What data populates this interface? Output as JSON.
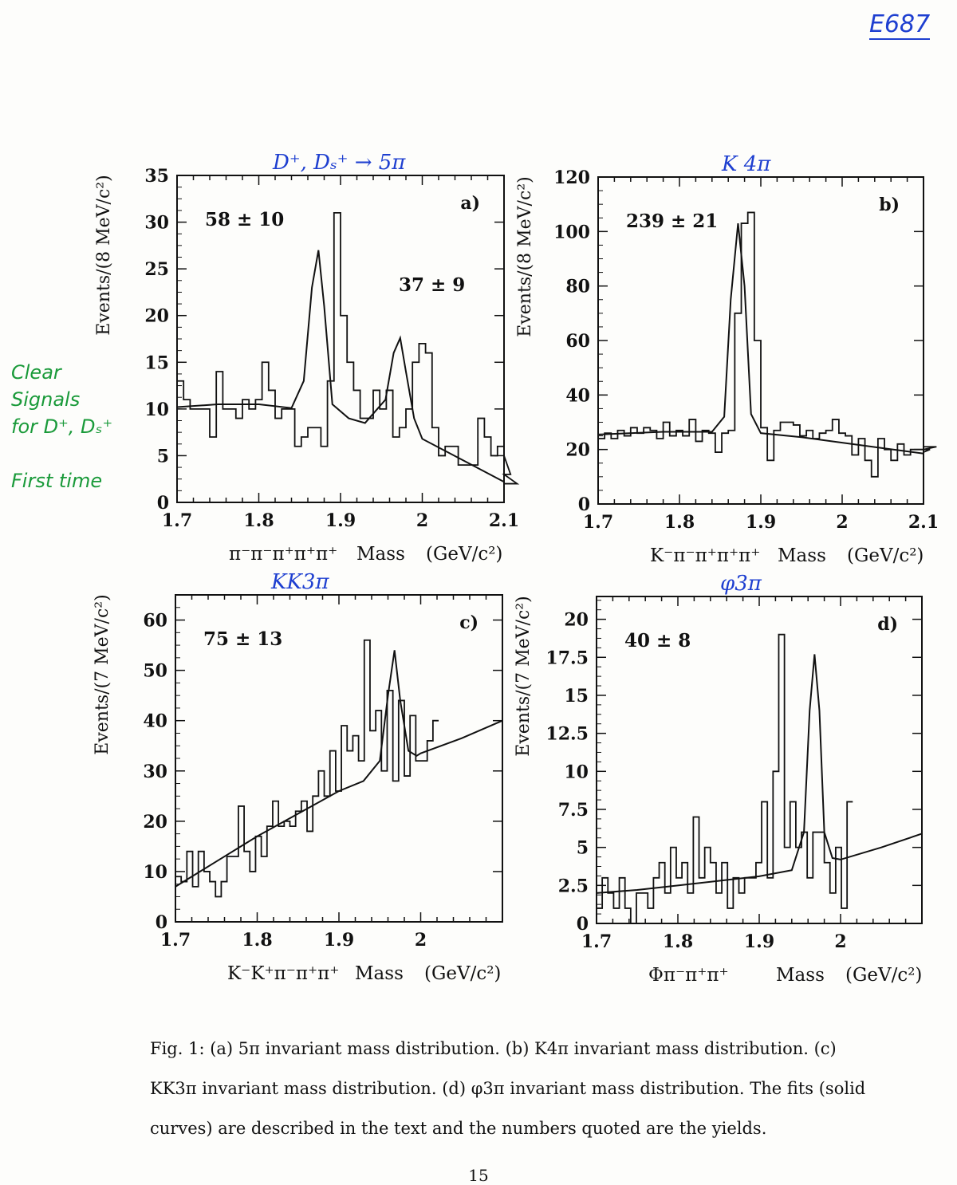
{
  "annotations": {
    "note_id": "E687",
    "side_note": "Clear\nSignals\nfor D⁺, Dₛ⁺\n\nFirst time",
    "page_number": "15"
  },
  "caption": "Fig. 1: (a) 5π invariant mass distribution. (b) K4π invariant mass distribution. (c) KK3π invariant mass distribution. (d) φ3π invariant mass distribution. The fits (solid curves) are described in the text and the numbers quoted are the yields.",
  "colors": {
    "ink": "#111111",
    "handwriting_blue": "#1e3fd0",
    "handwriting_green": "#1a9a3a"
  },
  "chart_data": [
    {
      "type": "line",
      "panel_label": "a)",
      "handwritten_title": "D⁺, Dₛ⁺ → 5π",
      "yield_label": "58 ± 10",
      "yield_label_2": "37 ± 9",
      "ylabel": "Events/(8 MeV/c²)",
      "xlabel_parts": [
        "π⁻π⁻π⁺π⁺π⁺",
        "Mass",
        "(GeV/c²)"
      ],
      "xlim": [
        1.7,
        2.1
      ],
      "ylim": [
        0,
        35
      ],
      "x_ticks": [
        1.7,
        1.8,
        1.9,
        2.0,
        2.1
      ],
      "x_tick_labels": [
        "1.7",
        "1.8",
        "1.9",
        "2",
        "2.1"
      ],
      "y_ticks": [
        0,
        5,
        10,
        15,
        20,
        25,
        30,
        35
      ],
      "y_tick_labels": [
        "0",
        "5",
        "10",
        "15",
        "20",
        "25",
        "30",
        "35"
      ],
      "series": [
        {
          "style": "histogram",
          "x_start": 1.7,
          "bin_width": 0.008,
          "values": [
            13,
            11,
            10,
            10,
            10,
            7,
            14,
            10,
            10,
            9,
            11,
            10,
            11,
            15,
            12,
            9,
            10,
            10,
            6,
            7,
            8,
            8,
            6,
            13,
            31,
            20,
            15,
            12,
            9,
            9,
            12,
            10,
            12,
            7,
            8,
            10,
            15,
            17,
            16,
            8,
            5,
            6,
            6,
            4,
            4,
            4,
            9,
            7,
            5,
            6,
            5,
            3,
            2
          ]
        },
        {
          "style": "fit",
          "x": [
            1.7,
            1.75,
            1.8,
            1.84,
            1.855,
            1.865,
            1.873,
            1.88,
            1.89,
            1.91,
            1.93,
            1.955,
            1.965,
            1.973,
            1.98,
            1.99,
            2.0,
            2.05,
            2.1
          ],
          "y": [
            10.2,
            10.5,
            10.5,
            10.1,
            13,
            23,
            27,
            21,
            10.5,
            9,
            8.5,
            11,
            16,
            17.6,
            14,
            9,
            6.8,
            4.5,
            2.2
          ]
        }
      ]
    },
    {
      "type": "line",
      "panel_label": "b)",
      "handwritten_title": "K 4π",
      "yield_label": "239 ± 21",
      "ylabel": "Events/(8 MeV/c²)",
      "xlabel_parts": [
        "K⁻π⁻π⁺π⁺π⁺",
        "Mass",
        "(GeV/c²)"
      ],
      "xlim": [
        1.7,
        2.1
      ],
      "ylim": [
        0,
        120
      ],
      "x_ticks": [
        1.7,
        1.8,
        1.9,
        2.0,
        2.1
      ],
      "x_tick_labels": [
        "1.7",
        "1.8",
        "1.9",
        "2",
        "2.1"
      ],
      "y_ticks": [
        0,
        20,
        40,
        60,
        80,
        100,
        120
      ],
      "y_tick_labels": [
        "0",
        "20",
        "40",
        "60",
        "80",
        "100",
        "120"
      ],
      "series": [
        {
          "style": "histogram",
          "x_start": 1.7,
          "bin_width": 0.008,
          "values": [
            24,
            26,
            24,
            27,
            25,
            28,
            26,
            28,
            27,
            24,
            30,
            25,
            27,
            25,
            31,
            23,
            27,
            26,
            19,
            26,
            27,
            70,
            103,
            107,
            60,
            28,
            16,
            27,
            30,
            30,
            29,
            25,
            27,
            24,
            26,
            27,
            31,
            26,
            25,
            18,
            24,
            16,
            10,
            24,
            20,
            16,
            22,
            18,
            20,
            20,
            19,
            20,
            21
          ]
        },
        {
          "style": "fit",
          "x": [
            1.7,
            1.78,
            1.84,
            1.855,
            1.863,
            1.872,
            1.88,
            1.888,
            1.9,
            1.95,
            2.0,
            2.05,
            2.1
          ],
          "y": [
            25.5,
            26.5,
            26.5,
            32,
            75,
            103,
            80,
            33,
            26,
            24.5,
            22.5,
            20.5,
            18.5
          ]
        }
      ]
    },
    {
      "type": "line",
      "panel_label": "c)",
      "handwritten_title": "KK3π",
      "yield_label": "75 ± 13",
      "ylabel": "Events/(7 MeV/c²)",
      "xlabel_parts": [
        "K⁻K⁺π⁻π⁺π⁺",
        "Mass",
        "(GeV/c²)"
      ],
      "xlim": [
        1.7,
        2.1
      ],
      "ylim": [
        0,
        65
      ],
      "x_ticks": [
        1.7,
        1.8,
        1.9,
        2.0
      ],
      "x_tick_labels": [
        "1.7",
        "1.8",
        "1.9",
        "2"
      ],
      "y_ticks": [
        0,
        10,
        20,
        30,
        40,
        50,
        60
      ],
      "y_tick_labels": [
        "0",
        "10",
        "20",
        "30",
        "40",
        "50",
        "60"
      ],
      "series": [
        {
          "style": "histogram",
          "x_start": 1.7,
          "bin_width": 0.007,
          "values": [
            9,
            8,
            14,
            7,
            14,
            10,
            8,
            5,
            8,
            13,
            13,
            23,
            14,
            10,
            17,
            13,
            19,
            24,
            19,
            20,
            19,
            22,
            24,
            18,
            25,
            30,
            25,
            34,
            26,
            39,
            34,
            37,
            32,
            56,
            38,
            42,
            30,
            46,
            28,
            44,
            29,
            41,
            32,
            32,
            36,
            40
          ]
        },
        {
          "style": "fit",
          "x": [
            1.7,
            1.75,
            1.8,
            1.85,
            1.9,
            1.93,
            1.95,
            1.96,
            1.968,
            1.975,
            1.985,
            1.995,
            2.0,
            2.05,
            2.1
          ],
          "y": [
            7,
            12,
            17,
            21.5,
            26,
            28,
            32,
            45,
            54,
            44,
            34,
            33,
            33.5,
            36.5,
            40
          ]
        }
      ]
    },
    {
      "type": "line",
      "panel_label": "d)",
      "handwritten_title": "φ3π",
      "yield_label": "40 ± 8",
      "ylabel": "Events/(7 MeV/c²)",
      "xlabel_parts": [
        "Φπ⁻π⁺π⁺",
        "Mass",
        "(GeV/c²)"
      ],
      "xlim": [
        1.7,
        2.1
      ],
      "ylim": [
        0,
        21.5
      ],
      "x_ticks": [
        1.7,
        1.8,
        1.9,
        2.0
      ],
      "x_tick_labels": [
        "1.7",
        "1.8",
        "1.9",
        "2"
      ],
      "y_ticks": [
        0,
        2.5,
        5,
        7.5,
        10,
        12.5,
        15,
        17.5,
        20
      ],
      "y_tick_labels": [
        "0",
        "2.5",
        "5",
        "7.5",
        "10",
        "12.5",
        "15",
        "17.5",
        "20"
      ],
      "series": [
        {
          "style": "histogram",
          "x_start": 1.7,
          "bin_width": 0.007,
          "values": [
            1,
            3,
            2,
            1,
            3,
            1,
            0,
            2,
            2,
            1,
            3,
            4,
            2,
            5,
            3,
            4,
            2,
            7,
            3,
            5,
            4,
            2,
            4,
            1,
            3,
            2,
            3,
            3,
            4,
            8,
            3,
            10,
            19,
            5,
            8,
            5,
            6,
            3,
            6,
            6,
            4,
            2,
            5,
            1,
            8
          ]
        },
        {
          "style": "fit",
          "x": [
            1.7,
            1.75,
            1.8,
            1.85,
            1.9,
            1.94,
            1.955,
            1.962,
            1.968,
            1.974,
            1.98,
            1.99,
            2.0,
            2.05,
            2.1
          ],
          "y": [
            2,
            2.2,
            2.5,
            2.8,
            3.1,
            3.5,
            6,
            14,
            17.7,
            14,
            6,
            4.3,
            4.2,
            5,
            5.9
          ]
        }
      ]
    }
  ]
}
